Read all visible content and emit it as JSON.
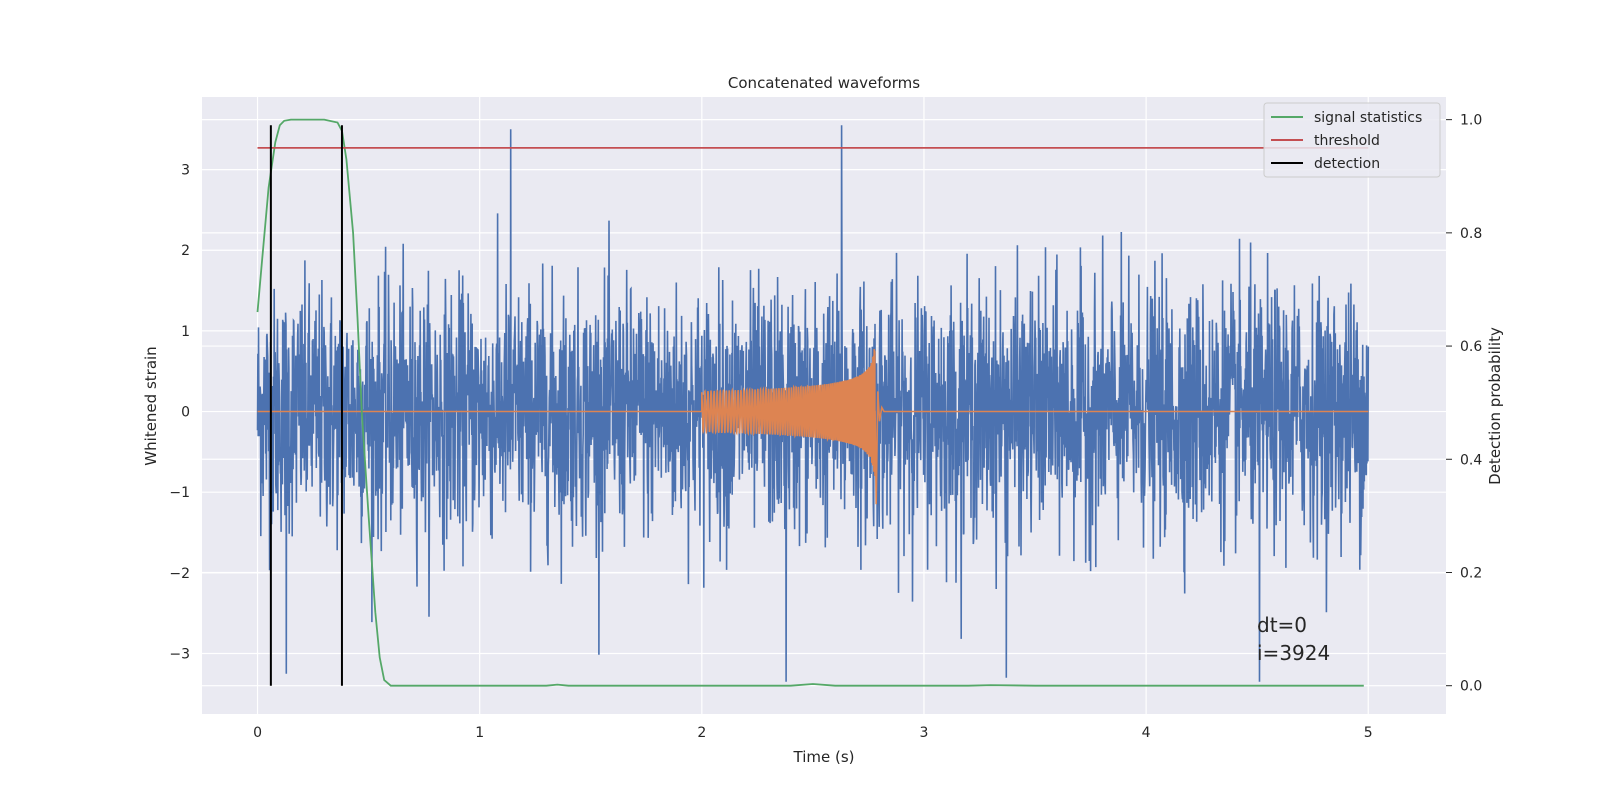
{
  "chart_data": {
    "type": "line",
    "title": "Concatenated waveforms",
    "xlabel": "Time (s)",
    "ylabel": "Whitened strain",
    "y2label": "Detection probability",
    "xlim": [
      -0.25,
      5.35
    ],
    "ylim": [
      -3.75,
      3.9
    ],
    "y2lim": [
      -0.05,
      1.04
    ],
    "x_ticks": [
      0,
      1,
      2,
      3,
      4,
      5
    ],
    "y_ticks": [
      -3,
      -2,
      -1,
      0,
      1,
      2,
      3
    ],
    "y2_ticks": [
      0.0,
      0.2,
      0.4,
      0.6,
      0.8,
      1.0
    ],
    "x_tick_labels": [
      "0",
      "1",
      "2",
      "3",
      "4",
      "5"
    ],
    "y_tick_labels": [
      "−3",
      "−2",
      "−1",
      "0",
      "1",
      "2",
      "3"
    ],
    "y2_tick_labels": [
      "0.0",
      "0.2",
      "0.4",
      "0.6",
      "0.8",
      "1.0"
    ],
    "grid": true,
    "background": "#eaeaf2",
    "legend_position": "top-right",
    "legend": [
      {
        "label": "signal statistics",
        "color": "#55a868"
      },
      {
        "label": "threshold",
        "color": "#c44e52"
      },
      {
        "label": "detection",
        "color": "#000000"
      }
    ],
    "series": [
      {
        "name": "",
        "kind": "noise",
        "axis": "left",
        "color": "#4c72b0",
        "x_range": [
          0,
          5
        ],
        "typical_amplitude": 0.75,
        "max_abs": 3.6,
        "notable_spikes": [
          {
            "x": 1.14,
            "y": 3.5
          },
          {
            "x": 2.63,
            "y": 3.55
          },
          {
            "x": 2.38,
            "y": -3.35
          },
          {
            "x": 4.51,
            "y": -3.35
          },
          {
            "x": 0.13,
            "y": -3.25
          },
          {
            "x": 3.37,
            "y": -3.3
          }
        ]
      },
      {
        "name": "",
        "kind": "chirp",
        "axis": "left",
        "color": "#dd8452",
        "x_range": [
          0,
          5
        ],
        "chirp_start": 2.0,
        "chirp_end": 2.78,
        "start_amplitude": 0.25,
        "peak_amplitude": 0.8,
        "peak_negative": -1.15
      },
      {
        "name": "signal statistics",
        "axis": "right",
        "color": "#55a868",
        "x": [
          0.0,
          0.02,
          0.05,
          0.08,
          0.1,
          0.12,
          0.15,
          0.2,
          0.3,
          0.36,
          0.38,
          0.4,
          0.43,
          0.45,
          0.47,
          0.5,
          0.53,
          0.55,
          0.57,
          0.6,
          0.7,
          1.0,
          1.3,
          1.35,
          1.4,
          1.6,
          2.0,
          2.4,
          2.5,
          2.6,
          2.8,
          3.2,
          3.3,
          3.5,
          4.0,
          4.5,
          4.98
        ],
        "y": [
          0.66,
          0.75,
          0.88,
          0.96,
          0.99,
          0.998,
          1.0,
          1.0,
          1.0,
          0.995,
          0.98,
          0.93,
          0.8,
          0.65,
          0.48,
          0.3,
          0.13,
          0.05,
          0.01,
          0.0,
          0.0,
          0.0,
          0.0,
          0.002,
          0.0,
          0.0,
          0.0,
          0.0,
          0.003,
          0.0,
          0.0,
          0.0,
          0.001,
          0.0,
          0.0,
          0.0,
          0.0
        ]
      },
      {
        "name": "threshold",
        "axis": "right",
        "color": "#c44e52",
        "x": [
          0.0,
          5.0
        ],
        "y": [
          0.95,
          0.95
        ]
      },
      {
        "name": "detection",
        "axis": "left",
        "color": "#000000",
        "vlines": [
          0.06,
          0.38
        ],
        "y_range": [
          -3.4,
          3.55
        ]
      }
    ],
    "annotation": [
      "dt=0",
      "i=3924"
    ]
  }
}
